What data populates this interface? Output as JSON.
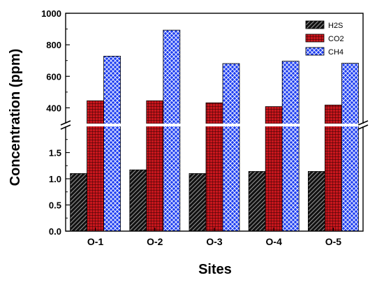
{
  "chart_data": {
    "type": "bar",
    "categories": [
      "O-1",
      "O-2",
      "O-3",
      "O-4",
      "O-5"
    ],
    "series": [
      {
        "name": "H2S",
        "values": [
          1.1,
          1.17,
          1.1,
          1.14,
          1.14
        ],
        "color": "#111111",
        "pattern": "diagonal-hatch"
      },
      {
        "name": "CO2",
        "values": [
          445,
          445,
          432,
          408,
          418
        ],
        "color": "#c8161d",
        "pattern": "grid-dots"
      },
      {
        "name": "CH4",
        "values": [
          728,
          893,
          681,
          696,
          683
        ],
        "color": "#1b3cf0",
        "pattern": "crosshatch"
      }
    ],
    "xlabel": "Sites",
    "ylabel": "Concentration (ppm)",
    "y_axis_broken": true,
    "lower_segment": {
      "ylim": [
        0.0,
        2.0
      ],
      "ticks": [
        "0.0",
        "0.5",
        "1.0",
        "1.5"
      ]
    },
    "upper_segment": {
      "ylim": [
        300,
        1000
      ],
      "ticks": [
        "400",
        "600",
        "800",
        "1000"
      ]
    },
    "legend_position": "top-right",
    "grid": false
  }
}
